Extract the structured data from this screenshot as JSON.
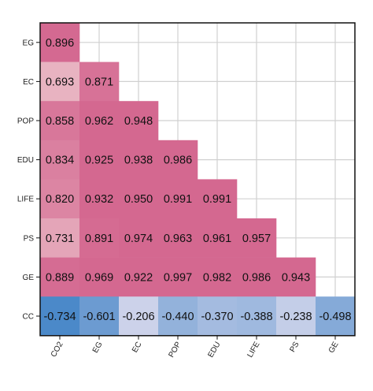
{
  "chart_data": {
    "type": "heatmap",
    "title": "",
    "rows": [
      "EG",
      "EC",
      "POP",
      "EDU",
      "LIFE",
      "PS",
      "GE",
      "CC"
    ],
    "columns": [
      "CO2",
      "EG",
      "EC",
      "POP",
      "EDU",
      "LIFE",
      "PS",
      "GE"
    ],
    "values": [
      [
        "0.896"
      ],
      [
        "0.693",
        "0.871"
      ],
      [
        "0.858",
        "0.962",
        "0.948"
      ],
      [
        "0.834",
        "0.925",
        "0.938",
        "0.986"
      ],
      [
        "0.820",
        "0.932",
        "0.950",
        "0.991",
        "0.991"
      ],
      [
        "0.731",
        "0.891",
        "0.974",
        "0.963",
        "0.961",
        "0.957"
      ],
      [
        "0.889",
        "0.969",
        "0.922",
        "0.997",
        "0.982",
        "0.986",
        "0.943"
      ],
      [
        "-0.734",
        "-0.601",
        "-0.206",
        "-0.440",
        "-0.370",
        "-0.388",
        "-0.238",
        "-0.498"
      ]
    ],
    "layout": "lower-triangular",
    "grid": true,
    "colors": {
      "positive_high": "#d46890",
      "positive_low": "#e8b4c2",
      "negative_high": "#4a88c9",
      "negative_low": "#cdd3ea",
      "grid": "#d0d0d0",
      "frame": "#111111"
    }
  }
}
